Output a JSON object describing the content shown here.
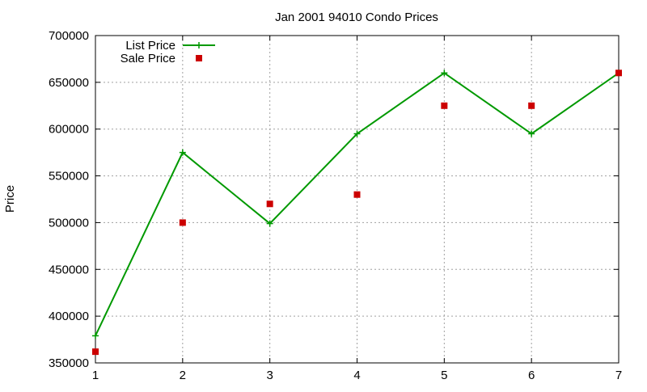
{
  "chart_data": {
    "type": "line",
    "title": "Jan 2001 94010 Condo Prices",
    "xlabel": "",
    "ylabel": "Price",
    "x": [
      1,
      2,
      3,
      4,
      5,
      6,
      7
    ],
    "xlim": [
      1,
      7
    ],
    "ylim": [
      350000,
      700000
    ],
    "xticks": [
      1,
      2,
      3,
      4,
      5,
      6,
      7
    ],
    "yticks": [
      350000,
      400000,
      450000,
      500000,
      550000,
      600000,
      650000,
      700000
    ],
    "grid": true,
    "legend_position": "top-left",
    "series": [
      {
        "name": "List Price",
        "style": "line+cross-markers",
        "color": "#009900",
        "values": [
          379000,
          575000,
          499000,
          595000,
          660000,
          595000,
          660000
        ]
      },
      {
        "name": "Sale Price",
        "style": "square-markers",
        "color": "#cc0000",
        "values": [
          362000,
          500000,
          520000,
          530000,
          625000,
          625000,
          660000
        ]
      }
    ]
  }
}
